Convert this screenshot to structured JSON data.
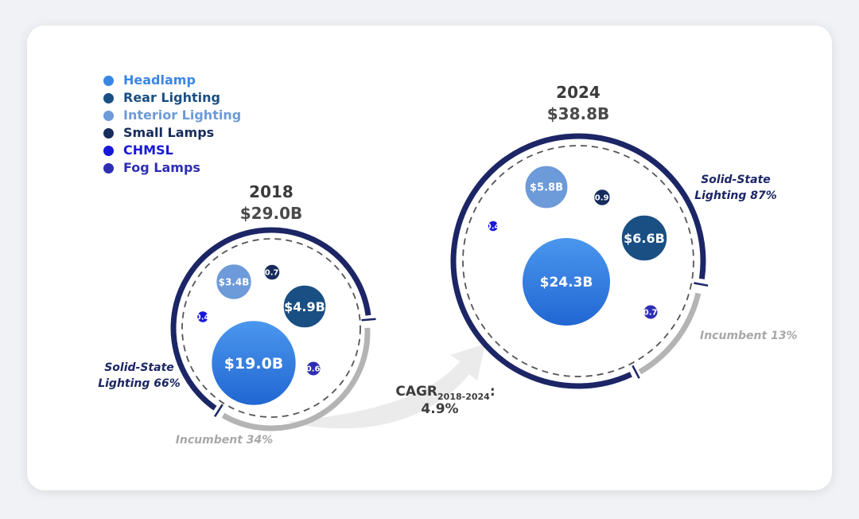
{
  "chart_data": {
    "type": "bubble",
    "colors": {
      "Headlamp": "#3a86e4",
      "Rear Lighting": "#1a4f84",
      "Interior Lighting": "#6d9ad8",
      "Small Lamps": "#172c5c",
      "CHMSL": "#1818d8",
      "Fog Lamps": "#2e2eb4",
      "ring": "#1c2666",
      "incumbent": "#b4b4b4"
    },
    "legend": [
      "Headlamp",
      "Rear Lighting",
      "Interior Lighting",
      "Small Lamps",
      "CHMSL",
      "Fog Lamps"
    ],
    "years": [
      {
        "year": "2018",
        "total": "$29.0B",
        "solid_state_label": [
          "Solid-State",
          "Lighting 66%"
        ],
        "solid_state_share": 66,
        "incumbent_label": "Incumbent 34%",
        "incumbent_share": 34,
        "segments": [
          {
            "name": "Headlamp",
            "value": 19.0,
            "label": "$19.0B"
          },
          {
            "name": "Rear Lighting",
            "value": 4.9,
            "label": "$4.9B"
          },
          {
            "name": "Interior Lighting",
            "value": 3.4,
            "label": "$3.4B"
          },
          {
            "name": "Small Lamps",
            "value": 0.7,
            "label": "$0.7B"
          },
          {
            "name": "CHMSL",
            "value": 0.4,
            "label": "$0.4B"
          },
          {
            "name": "Fog Lamps",
            "value": 0.6,
            "label": "$0.6B"
          }
        ]
      },
      {
        "year": "2024",
        "total": "$38.8B",
        "solid_state_label": [
          "Solid-State",
          "Lighting 87%"
        ],
        "solid_state_share": 87,
        "incumbent_label": "Incumbent 13%",
        "incumbent_share": 13,
        "segments": [
          {
            "name": "Headlamp",
            "value": 24.3,
            "label": "$24.3B"
          },
          {
            "name": "Rear Lighting",
            "value": 6.6,
            "label": "$6.6B"
          },
          {
            "name": "Interior Lighting",
            "value": 5.8,
            "label": "$5.8B"
          },
          {
            "name": "Small Lamps",
            "value": 0.9,
            "label": "$0.9B"
          },
          {
            "name": "CHMSL",
            "value": 0.4,
            "label": "$0.4B"
          },
          {
            "name": "Fog Lamps",
            "value": 0.7,
            "label": "$0.7B"
          }
        ]
      }
    ],
    "cagr": {
      "prefix": "CAGR",
      "subscript": "2018-2024",
      "suffix": ":",
      "value": "4.9%"
    }
  }
}
